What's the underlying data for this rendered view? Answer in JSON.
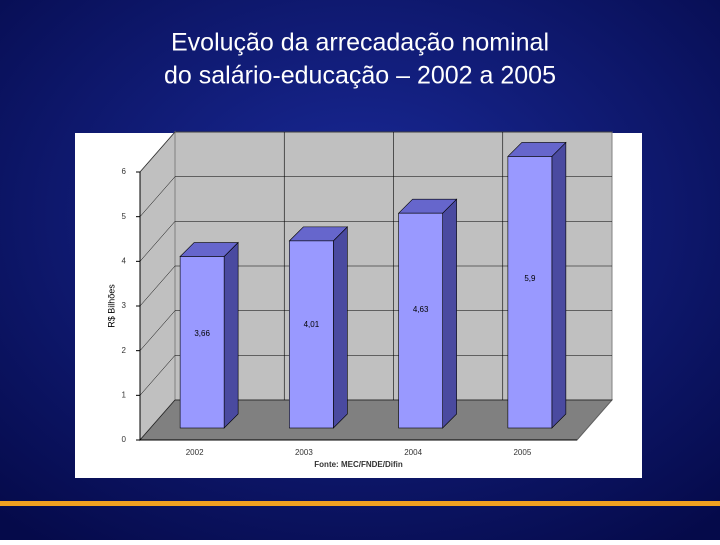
{
  "chart_data": {
    "type": "bar3d",
    "title": [
      "Evolução da arrecadação nominal",
      "do salário-educação – 2002 a 2005"
    ],
    "y_label": "R$ Bilhões",
    "source": "Fonte: MEC/FNDE/Difin",
    "categories": [
      "2002",
      "2003",
      "2004",
      "2005"
    ],
    "values": [
      3.66,
      4.01,
      4.63,
      5.9
    ],
    "value_labels": [
      "3,66",
      "4,01",
      "4,63",
      "5,9"
    ],
    "color": "#9999ff",
    "ylim": [
      0,
      6
    ],
    "yticks": [
      0,
      1,
      2,
      3,
      4,
      5,
      6
    ],
    "grid": true
  }
}
